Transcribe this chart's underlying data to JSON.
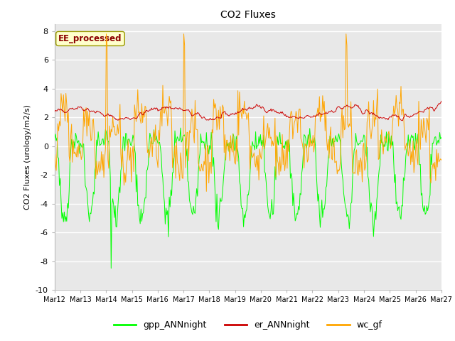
{
  "title": "CO2 Fluxes",
  "ylabel": "CO2 Fluxes (urology/m2/s)",
  "ylim": [
    -10,
    8.5
  ],
  "yticks": [
    -10,
    -8,
    -6,
    -4,
    -2,
    0,
    2,
    4,
    6,
    8
  ],
  "xtick_labels": [
    "Mar 12",
    "Mar 13",
    "Mar 14",
    "Mar 15",
    "Mar 16",
    "Mar 17",
    "Mar 18",
    "Mar 19",
    "Mar 20",
    "Mar 21",
    "Mar 22",
    "Mar 23",
    "Mar 24",
    "Mar 25",
    "Mar 26",
    "Mar 27"
  ],
  "line_gpp_color": "#00FF00",
  "line_er_color": "#CC0000",
  "line_wc_color": "#FFA500",
  "legend_labels": [
    "gpp_ANNnight",
    "er_ANNnight",
    "wc_gf"
  ],
  "annotation_text": "EE_processed",
  "plot_bg_color": "#e8e8e8",
  "n_points": 480,
  "seed": 42
}
